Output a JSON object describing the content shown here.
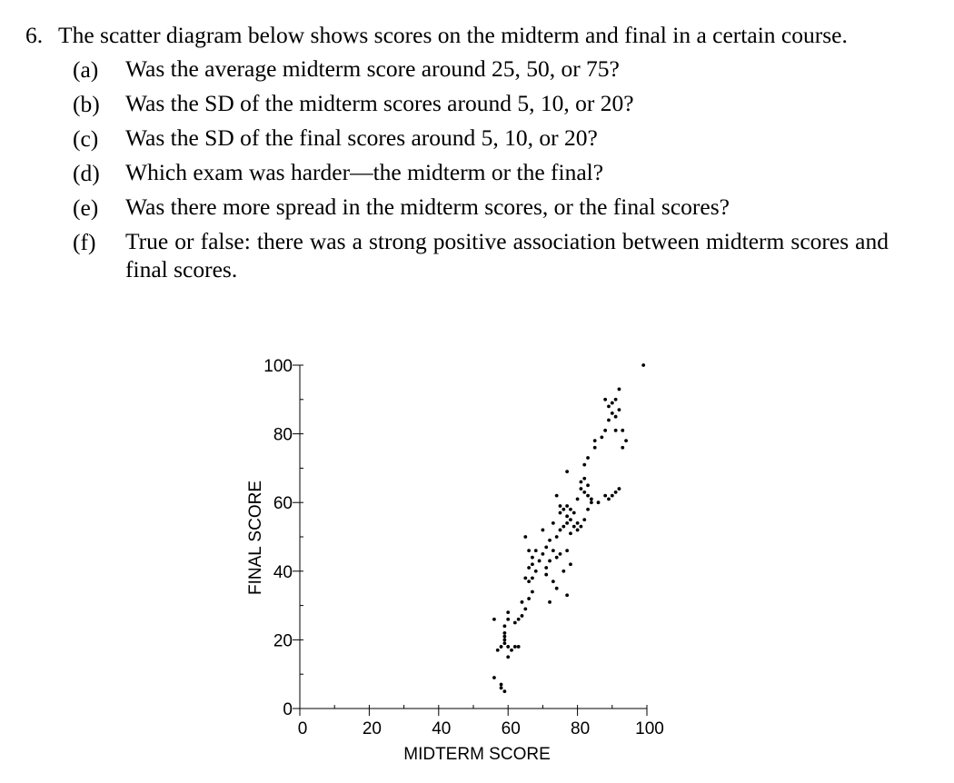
{
  "problem": {
    "number": "6.",
    "stem": "The scatter diagram below shows scores on the midterm and final in a certain course.",
    "parts": [
      {
        "label": "(a)",
        "text": "Was the average midterm score around 25, 50, or 75?"
      },
      {
        "label": "(b)",
        "text": "Was the SD of the midterm scores around 5, 10, or 20?"
      },
      {
        "label": "(c)",
        "text": "Was the SD of the final scores around 5, 10, or 20?"
      },
      {
        "label": "(d)",
        "text": "Which exam was harder—the midterm or the final?"
      },
      {
        "label": "(e)",
        "text": "Was there more spread in the midterm scores, or the final scores?"
      },
      {
        "label": "(f)",
        "text": "True or false: there was a strong positive association between midterm scores and final scores."
      }
    ]
  },
  "chart_data": {
    "type": "scatter",
    "title": "",
    "xlabel": "MIDTERM SCORE",
    "ylabel": "FINAL SCORE",
    "xlim": [
      0,
      100
    ],
    "ylim": [
      0,
      100
    ],
    "x_ticks": [
      0,
      20,
      40,
      60,
      80,
      100
    ],
    "y_ticks": [
      0,
      20,
      40,
      60,
      80,
      100
    ],
    "x_tick_labels": [
      "0",
      "20",
      "40",
      "60",
      "80",
      "100"
    ],
    "y_tick_labels": [
      "0",
      "20",
      "40",
      "60",
      "80",
      "100"
    ],
    "grid": false,
    "marker_color": "#000000",
    "series": [
      {
        "points": [
          [
            56,
            9
          ],
          [
            58,
            7
          ],
          [
            58,
            6
          ],
          [
            59,
            5
          ],
          [
            57,
            17
          ],
          [
            58,
            18
          ],
          [
            59,
            19
          ],
          [
            59,
            20
          ],
          [
            59,
            21
          ],
          [
            59,
            22
          ],
          [
            60,
            15
          ],
          [
            60,
            18
          ],
          [
            61,
            17
          ],
          [
            62,
            18
          ],
          [
            63,
            18
          ],
          [
            59,
            24
          ],
          [
            60,
            26
          ],
          [
            60,
            28
          ],
          [
            56,
            26
          ],
          [
            62,
            25
          ],
          [
            63,
            26
          ],
          [
            64,
            27
          ],
          [
            65,
            29
          ],
          [
            64,
            31
          ],
          [
            66,
            32
          ],
          [
            67,
            34
          ],
          [
            66,
            37
          ],
          [
            67,
            38
          ],
          [
            68,
            40
          ],
          [
            67,
            42
          ],
          [
            69,
            43
          ],
          [
            70,
            45
          ],
          [
            71,
            47
          ],
          [
            72,
            49
          ],
          [
            70,
            52
          ],
          [
            65,
            38
          ],
          [
            66,
            41
          ],
          [
            67,
            44
          ],
          [
            68,
            46
          ],
          [
            65,
            50
          ],
          [
            66,
            46
          ],
          [
            71,
            39
          ],
          [
            72,
            43
          ],
          [
            74,
            44
          ],
          [
            73,
            46
          ],
          [
            75,
            45
          ],
          [
            71,
            41
          ],
          [
            73,
            37
          ],
          [
            74,
            35
          ],
          [
            76,
            40
          ],
          [
            78,
            42
          ],
          [
            77,
            46
          ],
          [
            77,
            33
          ],
          [
            72,
            31
          ],
          [
            74,
            50
          ],
          [
            75,
            52
          ],
          [
            76,
            53
          ],
          [
            77,
            54
          ],
          [
            78,
            55
          ],
          [
            79,
            57
          ],
          [
            78,
            51
          ],
          [
            80,
            52
          ],
          [
            79,
            53
          ],
          [
            77,
            56
          ],
          [
            76,
            58
          ],
          [
            75,
            59
          ],
          [
            74,
            62
          ],
          [
            77,
            59
          ],
          [
            78,
            58
          ],
          [
            80,
            54
          ],
          [
            81,
            53
          ],
          [
            82,
            55
          ],
          [
            83,
            58
          ],
          [
            77,
            69
          ],
          [
            75,
            57
          ],
          [
            73,
            54
          ],
          [
            80,
            61
          ],
          [
            81,
            64
          ],
          [
            82,
            63
          ],
          [
            83,
            62
          ],
          [
            81,
            66
          ],
          [
            82,
            67
          ],
          [
            83,
            65
          ],
          [
            84,
            61
          ],
          [
            86,
            60
          ],
          [
            88,
            62
          ],
          [
            89,
            61
          ],
          [
            90,
            62
          ],
          [
            91,
            63
          ],
          [
            92,
            64
          ],
          [
            82,
            71
          ],
          [
            83,
            73
          ],
          [
            85,
            76
          ],
          [
            84,
            60
          ],
          [
            85,
            78
          ],
          [
            87,
            79
          ],
          [
            88,
            81
          ],
          [
            89,
            84
          ],
          [
            90,
            86
          ],
          [
            91,
            85
          ],
          [
            92,
            87
          ],
          [
            89,
            88
          ],
          [
            90,
            89
          ],
          [
            91,
            90
          ],
          [
            88,
            90
          ],
          [
            92,
            93
          ],
          [
            91,
            81
          ],
          [
            93,
            81
          ],
          [
            93,
            76
          ],
          [
            94,
            78
          ],
          [
            99,
            100
          ]
        ]
      }
    ]
  }
}
